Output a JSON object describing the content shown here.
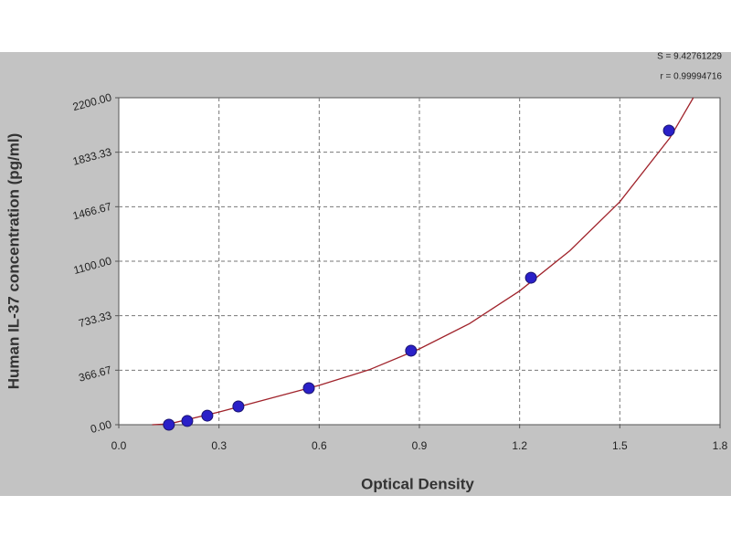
{
  "chart_data": {
    "type": "scatter",
    "x_label": "Optical Density",
    "y_label": "Human IL-37 concentration (pg/ml)",
    "annotations": [
      "S = 9.42761229",
      "r = 0.99994716"
    ],
    "xlim": [
      0,
      1.8
    ],
    "xticks": [
      {
        "value": 0,
        "label": "0.0"
      },
      0.3,
      0.6,
      0.9,
      1.2,
      1.5,
      1.8
    ],
    "ylim": [
      0,
      2200
    ],
    "yticks": [
      {
        "value": 0,
        "label": "0.00"
      },
      366.67,
      733.33,
      {
        "value": 1100,
        "label": "1100.00"
      },
      1466.67,
      1833.33,
      {
        "value": 2200,
        "label": "2200.00"
      }
    ],
    "grid": true,
    "series": [
      {
        "color": "#2a20c8",
        "x": [
          0.15,
          0.205,
          0.265,
          0.358,
          0.569,
          0.875,
          1.234,
          1.647
        ],
        "values": [
          0,
          25,
          61,
          123,
          246,
          498,
          989,
          1979
        ]
      }
    ],
    "curve": {
      "color": "#a0232b",
      "x": [
        0.1,
        0.15,
        0.3,
        0.45,
        0.6,
        0.75,
        0.9,
        1.05,
        1.2,
        1.35,
        1.5,
        1.65,
        1.72
      ],
      "values": [
        0,
        5,
        85,
        175,
        265,
        370,
        510,
        680,
        900,
        1170,
        1500,
        1930,
        2200
      ]
    }
  }
}
